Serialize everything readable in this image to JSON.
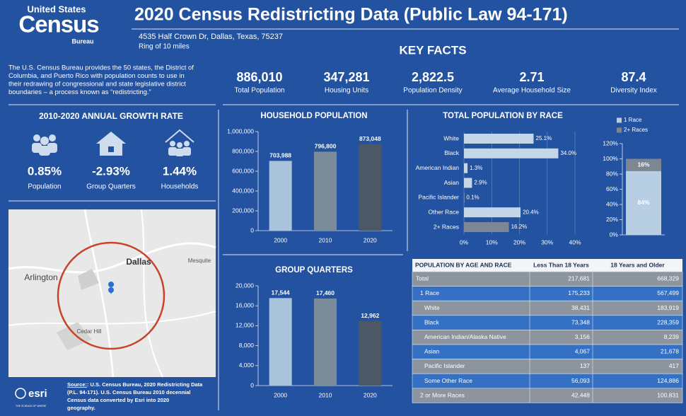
{
  "header": {
    "logo_top": "United States",
    "logo_main": "Census",
    "logo_bottom": "Bureau",
    "title": "2020 Census Redistricting Data (Public Law 94-171)",
    "address": "4535 Half Crown Dr, Dallas, Texas, 75237",
    "ring": "Ring of 10 miles"
  },
  "intro": [
    "The U.S. Census Bureau provides the 50 states, the District of",
    "Columbia, and Puerto Rico with population counts to use in",
    "their redrawing of congressional and state legislative district",
    "boundaries – a process known as “redistricting.”"
  ],
  "key_facts": {
    "title": "KEY FACTS",
    "items": [
      {
        "value": "886,010",
        "label": "Total Population"
      },
      {
        "value": "347,281",
        "label": "Housing Units"
      },
      {
        "value": "2,822.5",
        "label": "Population Density"
      },
      {
        "value": "2.71",
        "label": "Average Household Size"
      },
      {
        "value": "87.4",
        "label": "Diversity Index"
      }
    ]
  },
  "growth": {
    "title": "2010-2020 ANNUAL GROWTH RATE",
    "items": [
      {
        "value": "0.85%",
        "label": "Population"
      },
      {
        "value": "-2.93%",
        "label": "Group Quarters"
      },
      {
        "value": "1.44%",
        "label": "Households"
      }
    ]
  },
  "map": {
    "labels": [
      "Arlington",
      "Dallas",
      "Mesquite",
      "Cedar Hill"
    ]
  },
  "source": {
    "label": "Source:",
    "lines": [
      ": U.S. Census Bureau, 2020 Redistricting Data",
      "(P.L. 94-171).  U.S. Census Bureau 2010 decennial",
      "Census data converted by Esri into 2020",
      "geography."
    ]
  },
  "esri": {
    "name": "esri",
    "tagline": "THE SCIENCE OF WHERE"
  },
  "table": {
    "title": "POPULATION BY AGE AND RACE",
    "columns": [
      "Less Than 18 Years",
      "18 Years and Older"
    ],
    "rows": [
      [
        "Total",
        "217,681",
        "668,329"
      ],
      [
        "1 Race",
        "175,233",
        "567,499"
      ],
      [
        "White",
        "38,431",
        "183,919"
      ],
      [
        "Black",
        "73,348",
        "228,359"
      ],
      [
        "American Indian/Alaska Native",
        "3,156",
        "8,239"
      ],
      [
        "Asian",
        "4,067",
        "21,678"
      ],
      [
        "Pacific Islander",
        "137",
        "417"
      ],
      [
        "Some Other Race",
        "56,093",
        "124,886"
      ],
      [
        "2 or More Races",
        "42,448",
        "100,831"
      ]
    ]
  },
  "chart_data": [
    {
      "type": "bar",
      "title": "HOUSEHOLD POPULATION",
      "categories": [
        "2000",
        "2010",
        "2020"
      ],
      "values": [
        703988,
        796800,
        873048
      ],
      "value_labels": [
        "703,988",
        "796,800",
        "873,048"
      ],
      "colors": [
        "#a9c3da",
        "#7b8b99",
        "#4c5865"
      ],
      "ylim": [
        0,
        1000000
      ],
      "yticks": [
        0,
        {
          "value": 200000,
          "label": "200,000"
        },
        {
          "value": 400000,
          "label": "400,000"
        },
        {
          "value": 600000,
          "label": "600,000"
        },
        {
          "value": 800000,
          "label": "800,000"
        },
        {
          "value": 1000000,
          "label": "1,000,000"
        }
      ]
    },
    {
      "type": "bar",
      "title": "GROUP QUARTERS",
      "categories": [
        "2000",
        "2010",
        "2020"
      ],
      "values": [
        17544,
        17460,
        12962
      ],
      "value_labels": [
        "17,544",
        "17,460",
        "12,962"
      ],
      "colors": [
        "#a9c3da",
        "#7b8b99",
        "#4c5865"
      ],
      "ylim": [
        0,
        20000
      ],
      "yticks": [
        0,
        {
          "value": 4000,
          "label": "4,000"
        },
        {
          "value": 8000,
          "label": "8,000"
        },
        {
          "value": 12000,
          "label": "12,000"
        },
        {
          "value": 16000,
          "label": "16,000"
        },
        {
          "value": 20000,
          "label": "20,000"
        }
      ]
    },
    {
      "type": "bar",
      "orientation": "horizontal",
      "title": "TOTAL POPULATION BY RACE",
      "categories": [
        "White",
        "Black",
        "American Indian",
        "Asian",
        "Pacific Islander",
        "Other Race",
        "2+ Races"
      ],
      "values": [
        25.1,
        34.0,
        1.3,
        2.9,
        0.1,
        20.4,
        16.2
      ],
      "value_labels": [
        "25.1%",
        "34.0%",
        "1.3%",
        "2.9%",
        "0.1%",
        "20.4%",
        "16.2%"
      ],
      "colors": [
        "#c4d7e9",
        "#c4d7e9",
        "#c4d7e9",
        "#c4d7e9",
        "#c4d7e9",
        "#c4d7e9",
        "#7b8792"
      ],
      "xlim": [
        0,
        40
      ],
      "xticks": [
        {
          "value": 0,
          "label": "0%"
        },
        {
          "value": 10,
          "label": "10%"
        },
        {
          "value": 20,
          "label": "20%"
        },
        {
          "value": 30,
          "label": "30%"
        },
        {
          "value": 40,
          "label": "40%"
        }
      ],
      "grid": true
    },
    {
      "type": "bar",
      "stacked": true,
      "categories": [
        null
      ],
      "series": [
        {
          "name": "1 Race",
          "color": "#b8cfe3",
          "values": [
            84
          ],
          "value_labels": [
            "84%"
          ]
        },
        {
          "name": "2+ Races",
          "color": "#7d8791",
          "values": [
            16
          ],
          "value_labels": [
            "16%"
          ]
        }
      ],
      "ylim": [
        0,
        120
      ],
      "yticks": [
        {
          "value": 0,
          "label": "0%"
        },
        {
          "value": 20,
          "label": "20%"
        },
        {
          "value": 40,
          "label": "40%"
        },
        {
          "value": 60,
          "label": "60%"
        },
        {
          "value": 80,
          "label": "80%"
        },
        {
          "value": 100,
          "label": "100%"
        },
        {
          "value": 120,
          "label": "120%"
        }
      ],
      "legend": "top"
    }
  ]
}
